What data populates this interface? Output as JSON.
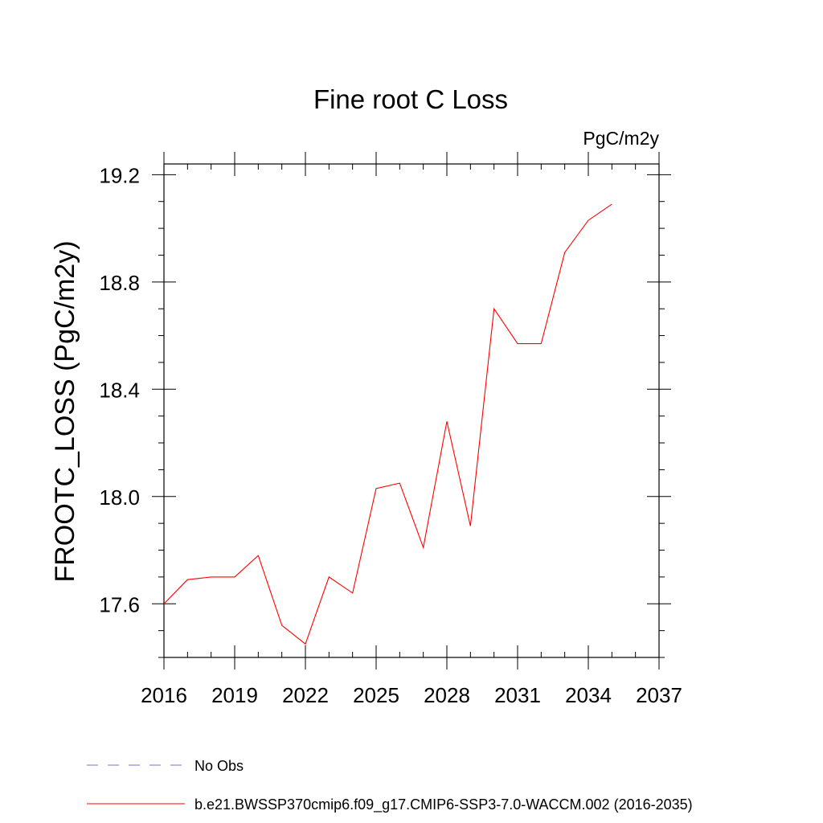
{
  "chart_data": {
    "type": "line",
    "title": "Fine root C Loss",
    "units_label": "PgC/m2y",
    "ylabel": "FROOTC_LOSS  (PgC/m2y)",
    "xlabel": "",
    "xlim": [
      2016,
      2037
    ],
    "ylim": [
      17.4,
      19.24
    ],
    "x_ticks": [
      2016,
      2019,
      2022,
      2025,
      2028,
      2031,
      2034,
      2037
    ],
    "x_tick_labels": [
      "2016",
      "2019",
      "2022",
      "2025",
      "2028",
      "2031",
      "2034",
      "2037"
    ],
    "y_ticks": [
      17.6,
      18.0,
      18.4,
      18.8,
      19.2
    ],
    "y_tick_labels": [
      "17.6",
      "18.0",
      "18.4",
      "18.8",
      "19.2"
    ],
    "grid": false,
    "legend_position": "bottom",
    "series": [
      {
        "name": "No Obs",
        "color": "#7b6fd0",
        "style": "dashed",
        "x": [],
        "values": []
      },
      {
        "name": "b.e21.BWSSP370cmip6.f09_g17.CMIP6-SSP3-7.0-WACCM.002 (2016-2035)",
        "color": "#ff0000",
        "style": "solid",
        "x": [
          2016,
          2017,
          2018,
          2019,
          2020,
          2021,
          2022,
          2023,
          2024,
          2025,
          2026,
          2027,
          2028,
          2029,
          2030,
          2031,
          2032,
          2033,
          2034,
          2035
        ],
        "values": [
          17.6,
          17.69,
          17.7,
          17.7,
          17.78,
          17.52,
          17.45,
          17.7,
          17.64,
          18.03,
          18.05,
          17.81,
          18.28,
          17.89,
          18.7,
          18.57,
          18.57,
          18.91,
          19.03,
          19.09
        ]
      }
    ]
  }
}
